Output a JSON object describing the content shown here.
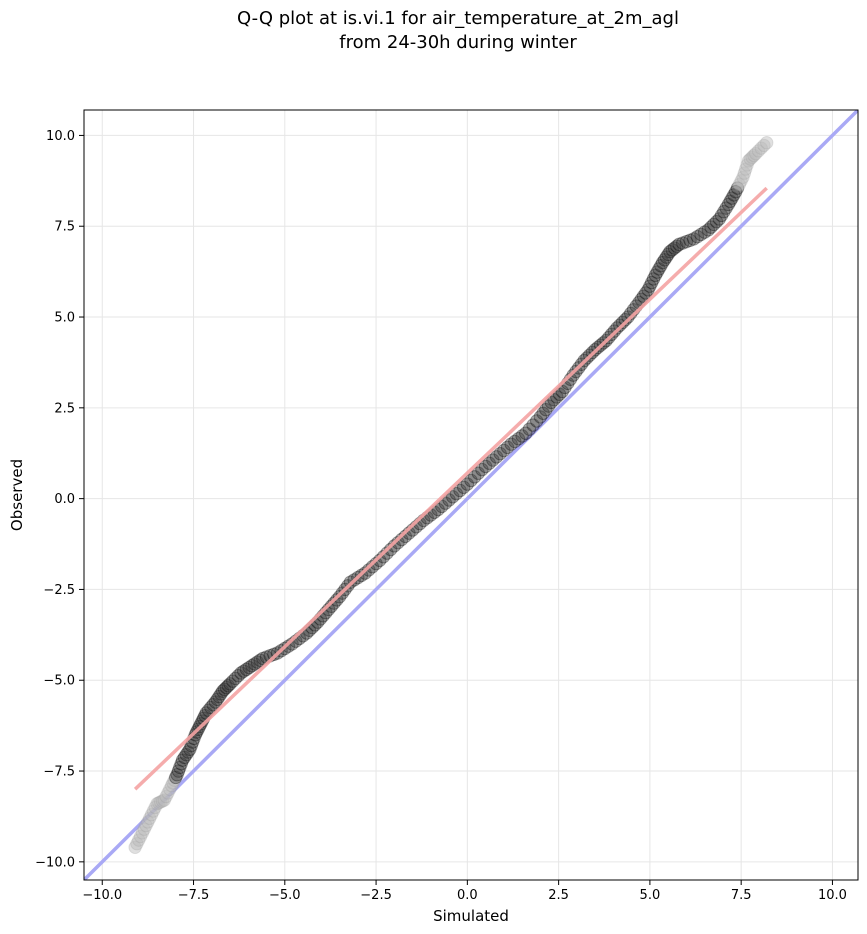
{
  "chart_data": {
    "type": "scatter",
    "title_line1": "Q-Q plot at is.vi.1 for air_temperature_at_2m_agl",
    "title_line2": "from 24-30h during winter",
    "xlabel": "Simulated",
    "ylabel": "Observed",
    "xlim": [
      -10.5,
      10.7
    ],
    "ylim": [
      -10.5,
      10.7
    ],
    "grid": true,
    "xticks": [
      -10.0,
      -7.5,
      -5.0,
      -2.5,
      0.0,
      2.5,
      5.0,
      7.5,
      10.0
    ],
    "yticks": [
      -10.0,
      -7.5,
      -5.0,
      -2.5,
      0.0,
      2.5,
      5.0,
      7.5,
      10.0
    ],
    "xtick_labels": [
      "−10.0",
      "−7.5",
      "−5.0",
      "−2.5",
      "0.0",
      "2.5",
      "5.0",
      "7.5",
      "10.0"
    ],
    "ytick_labels": [
      "−10.0",
      "−7.5",
      "−5.0",
      "−2.5",
      "0.0",
      "2.5",
      "5.0",
      "7.5",
      "10.0"
    ],
    "quantile_points": [
      [
        -9.1,
        -9.6
      ],
      [
        -8.9,
        -9.2
      ],
      [
        -8.7,
        -8.8
      ],
      [
        -8.5,
        -8.4
      ],
      [
        -8.3,
        -8.3
      ],
      [
        -8.1,
        -7.9
      ],
      [
        -7.95,
        -7.6
      ],
      [
        -7.8,
        -7.2
      ],
      [
        -7.6,
        -6.9
      ],
      [
        -7.45,
        -6.5
      ],
      [
        -7.3,
        -6.2
      ],
      [
        -7.15,
        -5.9
      ],
      [
        -6.9,
        -5.6
      ],
      [
        -6.7,
        -5.3
      ],
      [
        -6.5,
        -5.1
      ],
      [
        -6.2,
        -4.8
      ],
      [
        -5.9,
        -4.6
      ],
      [
        -5.6,
        -4.4
      ],
      [
        -5.2,
        -4.25
      ],
      [
        -4.8,
        -4.0
      ],
      [
        -4.4,
        -3.7
      ],
      [
        -4.1,
        -3.4
      ],
      [
        -3.8,
        -3.05
      ],
      [
        -3.5,
        -2.7
      ],
      [
        -3.2,
        -2.3
      ],
      [
        -2.8,
        -2.05
      ],
      [
        -2.4,
        -1.7
      ],
      [
        -2.0,
        -1.3
      ],
      [
        -1.6,
        -0.95
      ],
      [
        -1.2,
        -0.6
      ],
      [
        -0.8,
        -0.3
      ],
      [
        -0.4,
        0.05
      ],
      [
        0.0,
        0.4
      ],
      [
        0.4,
        0.8
      ],
      [
        0.8,
        1.15
      ],
      [
        1.2,
        1.5
      ],
      [
        1.6,
        1.8
      ],
      [
        2.0,
        2.25
      ],
      [
        2.3,
        2.65
      ],
      [
        2.6,
        2.95
      ],
      [
        2.9,
        3.4
      ],
      [
        3.2,
        3.8
      ],
      [
        3.5,
        4.1
      ],
      [
        3.8,
        4.35
      ],
      [
        4.1,
        4.7
      ],
      [
        4.4,
        5.0
      ],
      [
        4.7,
        5.4
      ],
      [
        4.95,
        5.75
      ],
      [
        5.15,
        6.15
      ],
      [
        5.35,
        6.5
      ],
      [
        5.55,
        6.8
      ],
      [
        5.8,
        7.0
      ],
      [
        6.2,
        7.15
      ],
      [
        6.6,
        7.4
      ],
      [
        6.9,
        7.7
      ],
      [
        7.15,
        8.1
      ],
      [
        7.35,
        8.45
      ],
      [
        7.55,
        8.85
      ],
      [
        7.7,
        9.3
      ],
      [
        7.9,
        9.5
      ],
      [
        8.2,
        9.8
      ]
    ],
    "fit_line": [
      [
        -9.1,
        -8.0
      ],
      [
        8.2,
        8.55
      ]
    ],
    "identity_line": [
      [
        -10.5,
        -10.5
      ],
      [
        10.7,
        10.7
      ]
    ],
    "colors": {
      "points_edge": "#000000",
      "points_body": "#333333",
      "points_upper_tail": "#bbbbbb",
      "fit_line": "#f4a3a3",
      "identity_line": "#a9a9f5",
      "grid": "#e6e6e6"
    }
  }
}
